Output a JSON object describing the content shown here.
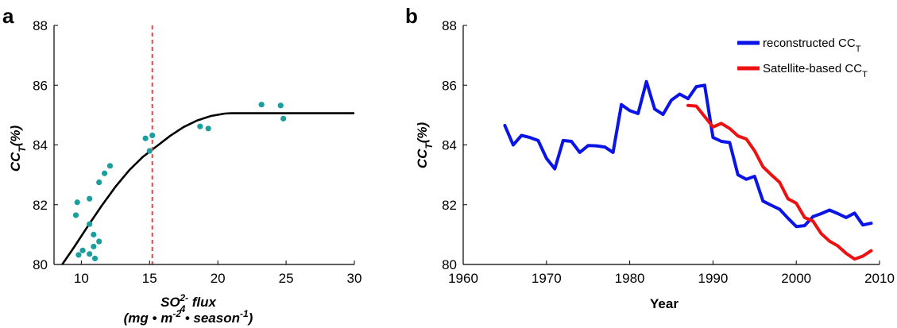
{
  "chart_data": [
    {
      "panel": "a",
      "type": "scatter",
      "ylabel_main": "CC",
      "ylabel_sub": "T",
      "ylabel_tail": "(%)",
      "xlabel_line1": {
        "pre": "SO",
        "sub": "4",
        "sup": "2-",
        "post": " flux"
      },
      "xlabel_line2": {
        "a": "(mg • m",
        "sup1": "-2",
        "b": " • season",
        "sup2": "-1",
        "c": ")"
      },
      "xlim": [
        8,
        30
      ],
      "ylim": [
        80,
        88
      ],
      "xticks": [
        10,
        15,
        20,
        25,
        30
      ],
      "yticks": [
        80,
        82,
        84,
        86,
        88
      ],
      "grid": false,
      "point_color": "#1a9e9e",
      "points": [
        {
          "x": 9.7,
          "y": 82.08
        },
        {
          "x": 9.6,
          "y": 81.65
        },
        {
          "x": 10.6,
          "y": 82.2
        },
        {
          "x": 11.3,
          "y": 82.75
        },
        {
          "x": 11.7,
          "y": 83.05
        },
        {
          "x": 12.1,
          "y": 83.3
        },
        {
          "x": 10.6,
          "y": 81.35
        },
        {
          "x": 10.9,
          "y": 81.0
        },
        {
          "x": 11.3,
          "y": 80.77
        },
        {
          "x": 10.9,
          "y": 80.6
        },
        {
          "x": 10.1,
          "y": 80.47
        },
        {
          "x": 9.8,
          "y": 80.32
        },
        {
          "x": 10.6,
          "y": 80.35
        },
        {
          "x": 11.0,
          "y": 80.2
        },
        {
          "x": 14.7,
          "y": 84.22
        },
        {
          "x": 15.2,
          "y": 84.32
        },
        {
          "x": 15.0,
          "y": 83.8
        },
        {
          "x": 18.7,
          "y": 84.62
        },
        {
          "x": 19.3,
          "y": 84.55
        },
        {
          "x": 23.2,
          "y": 85.35
        },
        {
          "x": 24.6,
          "y": 85.32
        },
        {
          "x": 24.8,
          "y": 84.88
        }
      ],
      "fit_line_color": "#000000",
      "fit_line": {
        "x": [
          8.6,
          9.5,
          10.5,
          11.5,
          12.5,
          13.5,
          14.5,
          15.5,
          16.5,
          17.5,
          18.5,
          19.5,
          20.5,
          21.0,
          22.0,
          24.0,
          26.0,
          28.0,
          30.0
        ],
        "y": [
          80.0,
          80.6,
          81.3,
          81.97,
          82.6,
          83.15,
          83.6,
          83.95,
          84.3,
          84.6,
          84.82,
          84.97,
          85.05,
          85.06,
          85.06,
          85.06,
          85.06,
          85.06,
          85.06
        ]
      },
      "vline": {
        "x": 15.2,
        "color": "#e84646",
        "style": "dashed"
      }
    },
    {
      "panel": "b",
      "type": "line",
      "xlabel": "Year",
      "ylabel_main": "CC",
      "ylabel_sub": "T",
      "ylabel_tail": "(%)",
      "xlim": [
        1960,
        2010
      ],
      "ylim": [
        80,
        88
      ],
      "xticks": [
        1960,
        1970,
        1980,
        1990,
        2000,
        2010
      ],
      "yticks": [
        80,
        82,
        84,
        86,
        88
      ],
      "grid": false,
      "legend_position": "top-right",
      "series": [
        {
          "name_main": "reconstructed CC",
          "name_sub": "T",
          "color": "#0a14e6",
          "x": [
            1965,
            1966,
            1967,
            1968,
            1969,
            1970,
            1971,
            1972,
            1973,
            1974,
            1975,
            1976,
            1977,
            1978,
            1979,
            1980,
            1981,
            1982,
            1983,
            1984,
            1985,
            1986,
            1987,
            1988,
            1989,
            1990,
            1991,
            1992,
            1993,
            1994,
            1995,
            1996,
            1997,
            1998,
            1999,
            2000,
            2001,
            2002,
            2003,
            2004,
            2005,
            2006,
            2007,
            2008,
            2009
          ],
          "y": [
            84.65,
            84.0,
            84.32,
            84.25,
            84.15,
            83.55,
            83.2,
            84.15,
            84.12,
            83.75,
            83.98,
            83.97,
            83.93,
            83.75,
            85.35,
            85.15,
            85.05,
            86.12,
            85.2,
            85.02,
            85.5,
            85.7,
            85.55,
            85.95,
            86.0,
            84.25,
            84.12,
            84.08,
            83.0,
            82.85,
            82.95,
            82.12,
            81.98,
            81.85,
            81.55,
            81.27,
            81.3,
            81.6,
            81.7,
            81.82,
            81.7,
            81.57,
            81.72,
            81.32,
            81.38
          ]
        },
        {
          "name_main": "Satellite-based CC",
          "name_sub": "T",
          "color": "#ee1111",
          "x": [
            1987,
            1988,
            1989,
            1990,
            1991,
            1992,
            1993,
            1994,
            1995,
            1996,
            1997,
            1998,
            1999,
            2000,
            2001,
            2002,
            2003,
            2004,
            2005,
            2006,
            2007,
            2008,
            2009
          ],
          "y": [
            85.32,
            85.3,
            84.95,
            84.6,
            84.72,
            84.55,
            84.3,
            84.2,
            83.8,
            83.27,
            83.0,
            82.75,
            82.2,
            82.05,
            81.57,
            81.45,
            81.03,
            80.78,
            80.62,
            80.37,
            80.18,
            80.28,
            80.46
          ]
        }
      ]
    }
  ]
}
